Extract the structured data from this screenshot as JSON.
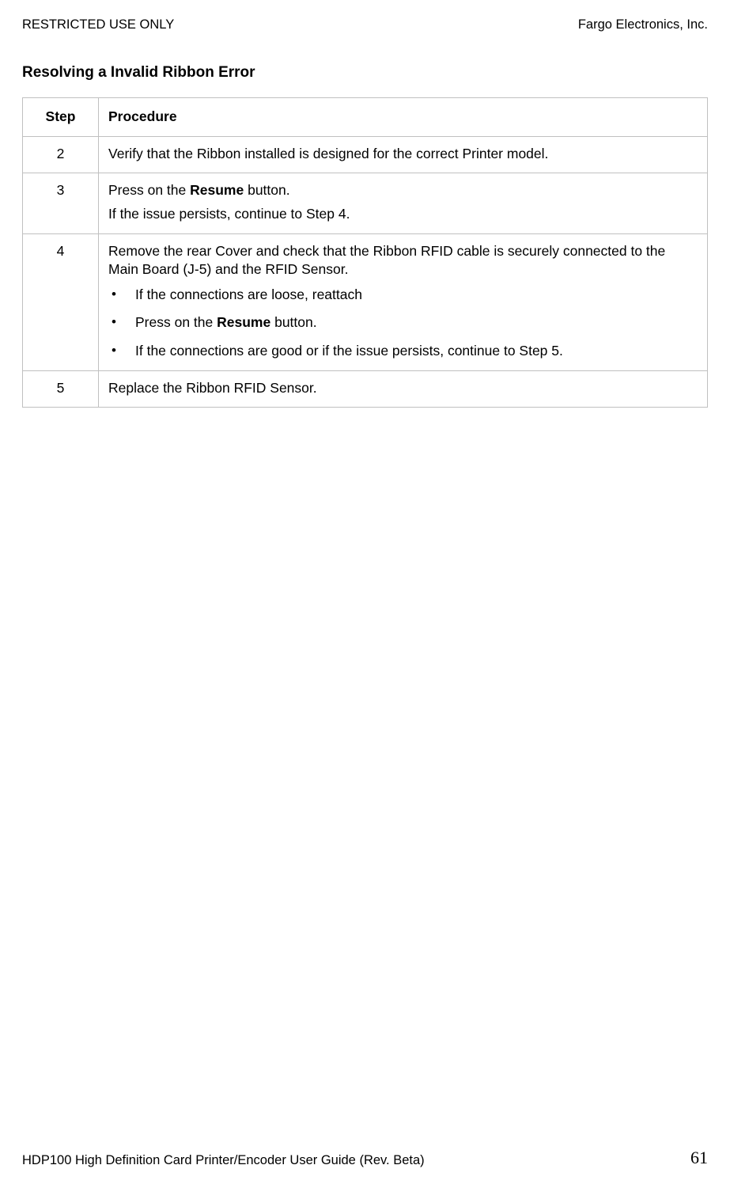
{
  "header": {
    "left": "RESTRICTED USE ONLY",
    "right": "Fargo Electronics, Inc."
  },
  "title": "Resolving a Invalid Ribbon Error",
  "table": {
    "head": {
      "step": "Step",
      "procedure": "Procedure"
    },
    "rows": [
      {
        "step": "2",
        "content": {
          "paras": [
            {
              "runs": [
                {
                  "text": "Verify that the Ribbon installed is designed for the correct Printer model."
                }
              ]
            }
          ]
        }
      },
      {
        "step": "3",
        "content": {
          "paras": [
            {
              "runs": [
                {
                  "text": "Press on the "
                },
                {
                  "text": "Resume",
                  "bold": true
                },
                {
                  "text": " button."
                }
              ]
            },
            {
              "runs": [
                {
                  "text": "If the issue persists, continue to Step 4."
                }
              ]
            }
          ]
        }
      },
      {
        "step": "4",
        "content": {
          "paras": [
            {
              "runs": [
                {
                  "text": "Remove the rear Cover and check that the Ribbon RFID cable is securely connected to the Main Board (J-5) and the RFID Sensor."
                }
              ]
            }
          ],
          "bullets": [
            {
              "runs": [
                {
                  "text": "If the connections are loose, reattach"
                }
              ]
            },
            {
              "runs": [
                {
                  "text": "Press on the "
                },
                {
                  "text": "Resume",
                  "bold": true
                },
                {
                  "text": " button."
                }
              ]
            },
            {
              "runs": [
                {
                  "text": "If the connections are good or if the issue persists, continue to Step 5."
                }
              ]
            }
          ]
        }
      },
      {
        "step": "5",
        "content": {
          "paras": [
            {
              "runs": [
                {
                  "text": "Replace the Ribbon RFID Sensor."
                }
              ]
            }
          ]
        }
      }
    ]
  },
  "footer": {
    "text": "HDP100 High Definition Card Printer/Encoder User Guide (Rev. Beta)",
    "page": "61"
  }
}
